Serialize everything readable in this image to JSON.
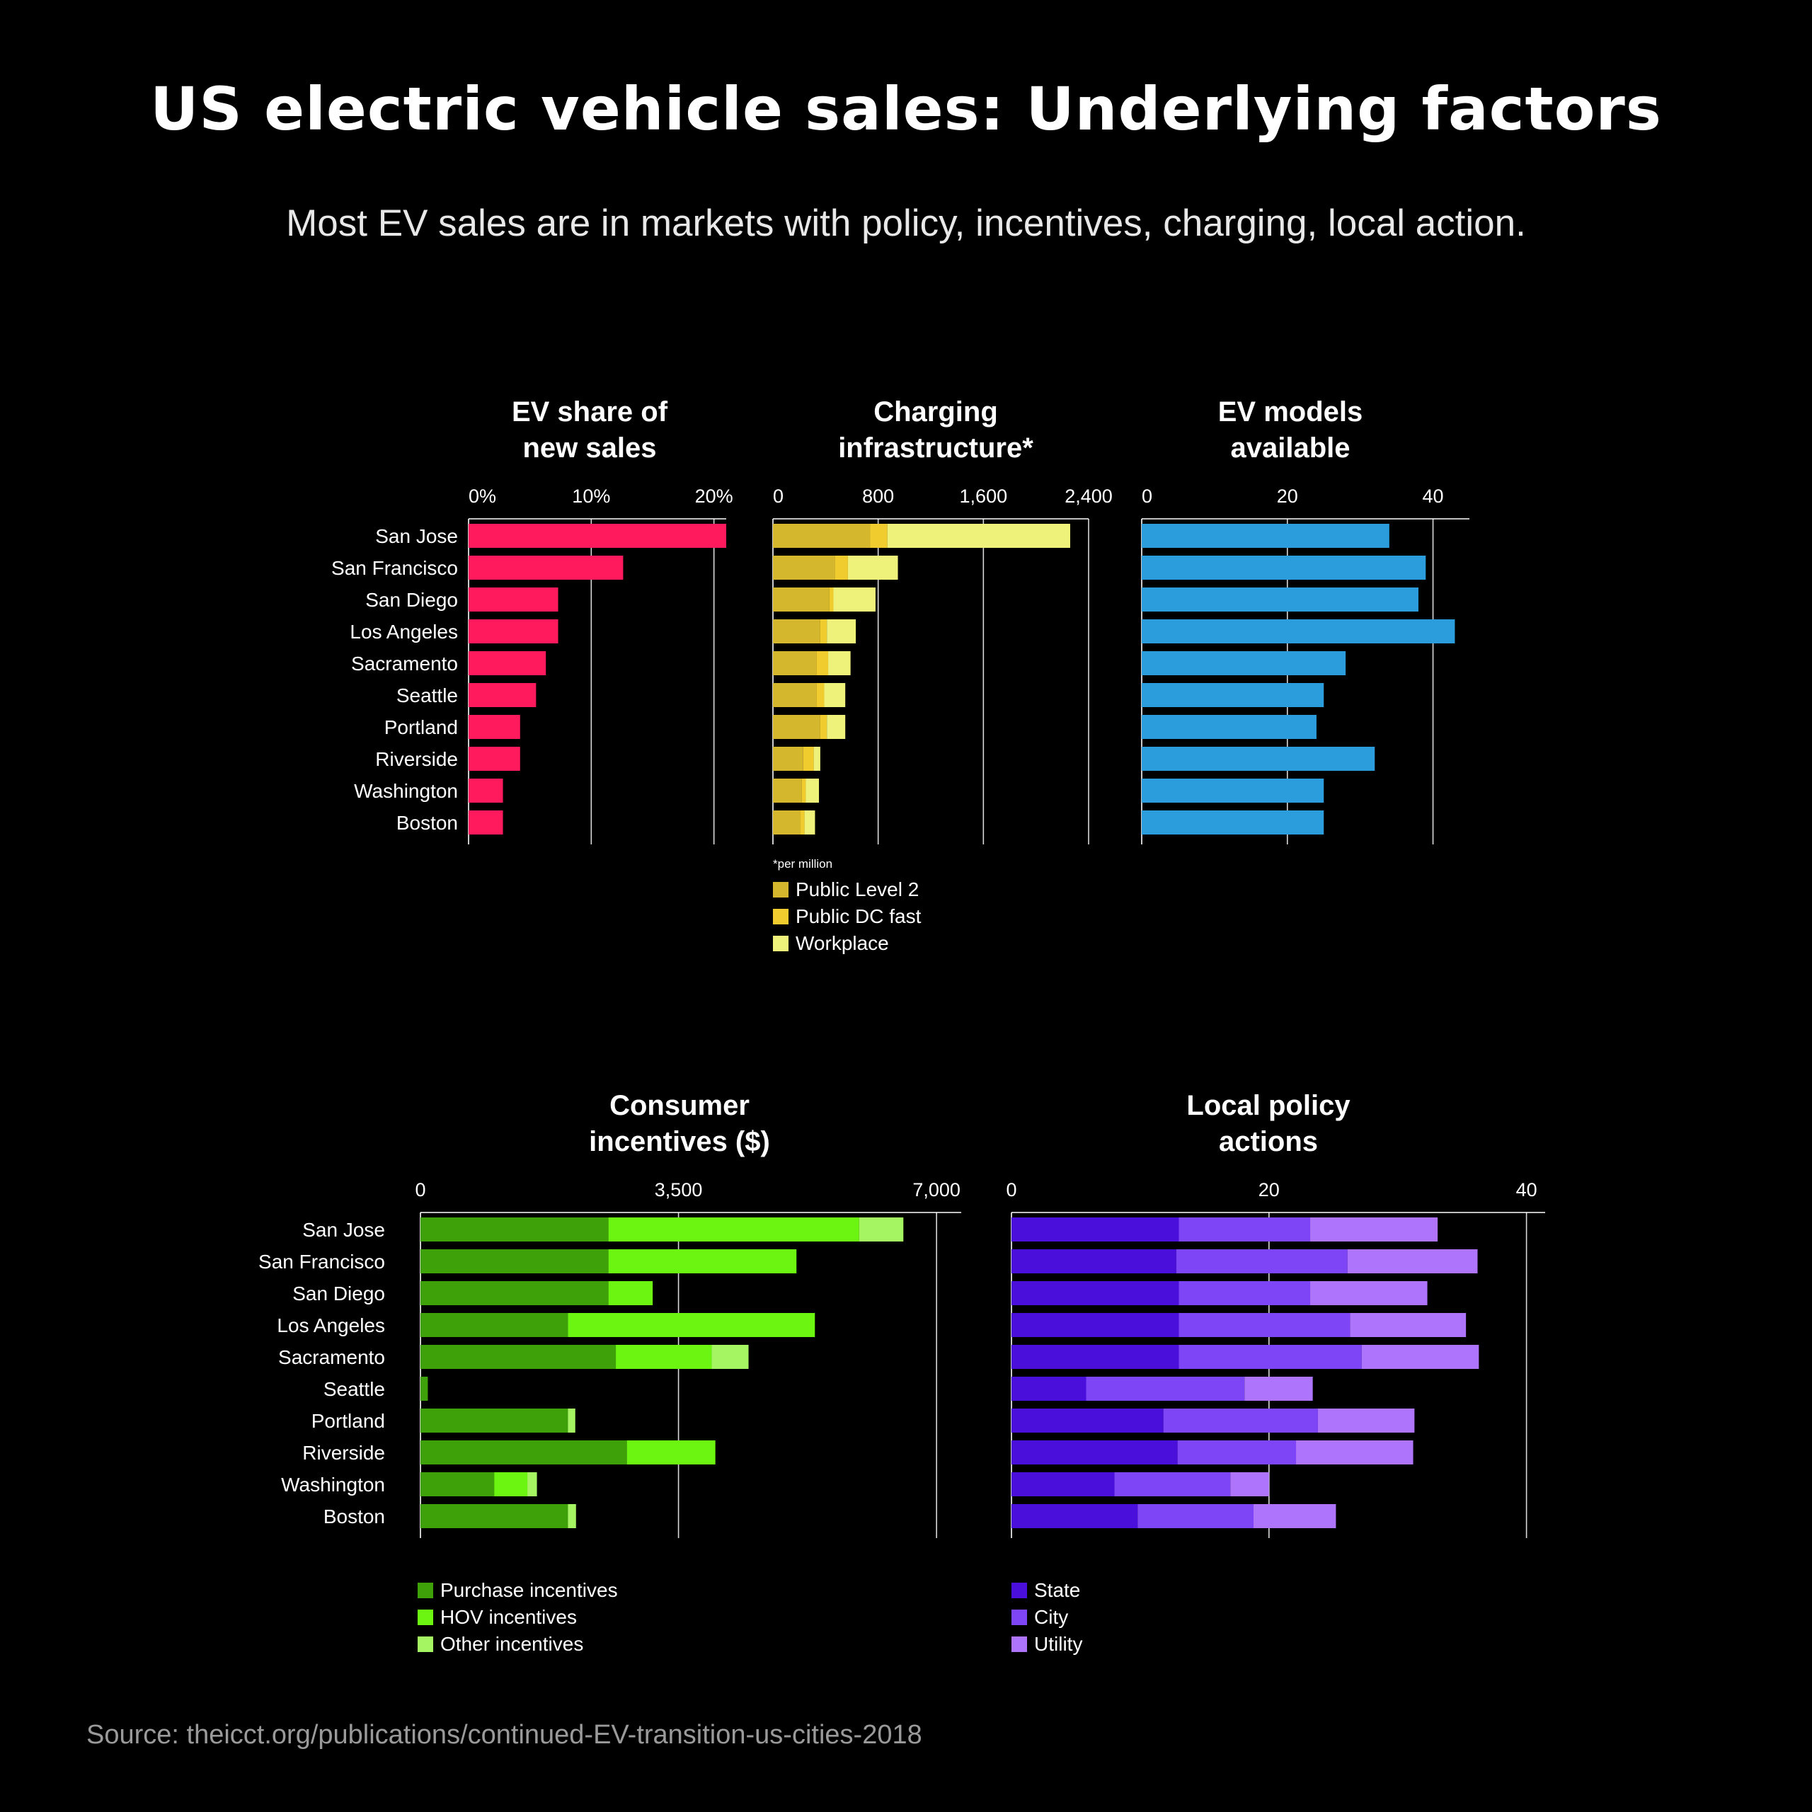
{
  "title": "US electric vehicle sales: Underlying factors",
  "subtitle": "Most EV sales are in markets with policy, incentives, charging, local action.",
  "source": "Source: theicct.org/publications/continued-EV-transition-us-cities-2018",
  "chart_data": [
    {
      "type": "bar",
      "title": "EV share of new sales",
      "categories": [
        "San Jose",
        "San Francisco",
        "San Diego",
        "Los Angeles",
        "Sacramento",
        "Seattle",
        "Portland",
        "Riverside",
        "Washington",
        "Boston"
      ],
      "ticks": [
        "0%",
        "10%",
        "20%"
      ],
      "tick_values": [
        0,
        10,
        20
      ],
      "xlim": [
        0,
        21
      ],
      "series": [
        {
          "name": "",
          "color": "#ff1a5e",
          "values": [
            21,
            12.6,
            7.3,
            7.3,
            6.3,
            5.5,
            4.2,
            4.2,
            2.8,
            2.8
          ]
        }
      ]
    },
    {
      "type": "bar",
      "title": "Charging infrastructure*",
      "note": "*per million",
      "categories": [
        "San Jose",
        "San Francisco",
        "San Diego",
        "Los Angeles",
        "Sacramento",
        "Seattle",
        "Portland",
        "Riverside",
        "Washington",
        "Boston"
      ],
      "ticks": [
        "0",
        "800",
        "1,600",
        "2,400"
      ],
      "tick_values": [
        0,
        800,
        1600,
        2400
      ],
      "xlim": [
        0,
        2400
      ],
      "series": [
        {
          "name": "Public Level 2",
          "color": "#d4b72c",
          "values": [
            740,
            470,
            430,
            360,
            330,
            330,
            360,
            230,
            220,
            210
          ]
        },
        {
          "name": "Public DC fast",
          "color": "#f0cc2e",
          "values": [
            130,
            100,
            30,
            50,
            90,
            60,
            50,
            80,
            30,
            30
          ]
        },
        {
          "name": "Workplace",
          "color": "#eef27a",
          "values": [
            1390,
            380,
            320,
            220,
            170,
            160,
            140,
            50,
            100,
            80
          ]
        }
      ]
    },
    {
      "type": "bar",
      "title": "EV models available",
      "categories": [
        "San Jose",
        "San Francisco",
        "San Diego",
        "Los Angeles",
        "Sacramento",
        "Seattle",
        "Portland",
        "Riverside",
        "Washington",
        "Boston"
      ],
      "ticks": [
        "0",
        "20",
        "40"
      ],
      "tick_values": [
        0,
        20,
        40
      ],
      "xlim": [
        0,
        45
      ],
      "series": [
        {
          "name": "",
          "color": "#2b9cdc",
          "values": [
            34,
            39,
            38,
            43,
            28,
            25,
            24,
            32,
            25,
            25
          ]
        }
      ]
    },
    {
      "type": "bar",
      "title": "Consumer incentives ($)",
      "categories": [
        "San Jose",
        "San Francisco",
        "San Diego",
        "Los Angeles",
        "Sacramento",
        "Seattle",
        "Portland",
        "Riverside",
        "Washington",
        "Boston"
      ],
      "ticks": [
        "0",
        "3,500",
        "7,000"
      ],
      "tick_values": [
        0,
        3500,
        7000
      ],
      "xlim": [
        0,
        7200
      ],
      "series": [
        {
          "name": "Purchase incentives",
          "color": "#3fa10a",
          "values": [
            2550,
            2550,
            2550,
            2000,
            2650,
            100,
            2000,
            2800,
            1000,
            2000
          ]
        },
        {
          "name": "HOV incentives",
          "color": "#6cf511",
          "values": [
            3400,
            2550,
            600,
            3350,
            1300,
            0,
            0,
            1200,
            450,
            0
          ]
        },
        {
          "name": "Other incentives",
          "color": "#a4f561",
          "values": [
            600,
            0,
            0,
            0,
            500,
            0,
            100,
            0,
            130,
            110
          ]
        }
      ]
    },
    {
      "type": "bar",
      "title": "Local policy actions",
      "categories": [
        "San Jose",
        "San Francisco",
        "San Diego",
        "Los Angeles",
        "Sacramento",
        "Seattle",
        "Portland",
        "Riverside",
        "Washington",
        "Boston"
      ],
      "ticks": [
        "0",
        "20",
        "40"
      ],
      "tick_values": [
        0,
        20,
        40
      ],
      "xlim": [
        0,
        42
      ],
      "series": [
        {
          "name": "State",
          "color": "#4b0fdc",
          "values": [
            13,
            12.8,
            13,
            13,
            13,
            5.8,
            11.8,
            12.9,
            8,
            9.8
          ]
        },
        {
          "name": "City",
          "color": "#7e45f7",
          "values": [
            10.2,
            13.3,
            10.2,
            13.3,
            14.2,
            12.3,
            12,
            9.2,
            9,
            9
          ]
        },
        {
          "name": "Utility",
          "color": "#ae74fb",
          "values": [
            9.9,
            10.1,
            9.1,
            9,
            9.1,
            5.3,
            7.5,
            9.1,
            3,
            6.4
          ]
        }
      ]
    }
  ]
}
